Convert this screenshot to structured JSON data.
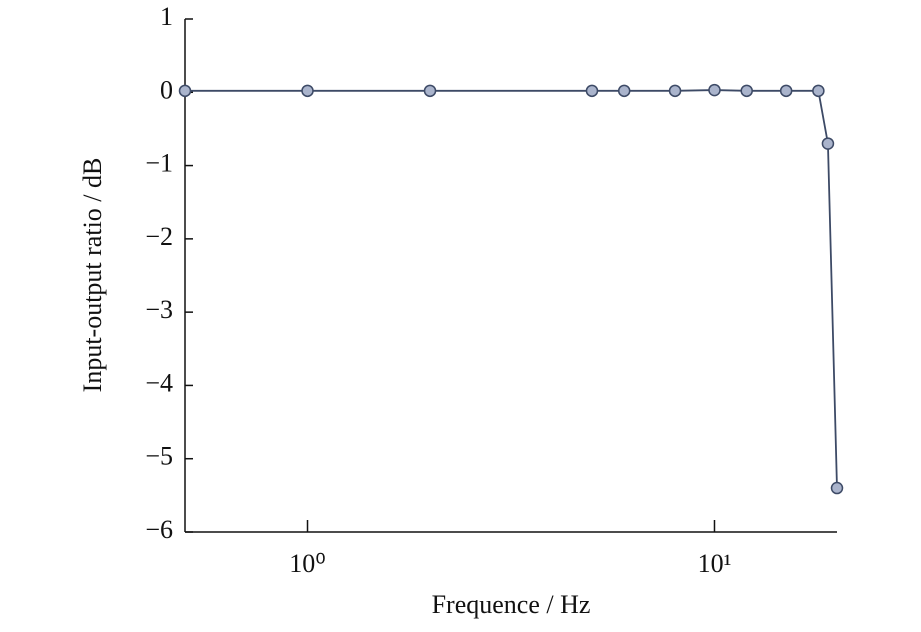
{
  "chart_data": {
    "type": "line",
    "x_label": "Frequence / Hz",
    "y_label": "Input-output ratio / dB",
    "x": [
      0.5,
      1,
      2,
      5,
      6,
      8,
      10,
      12,
      15,
      18,
      19,
      20
    ],
    "series": [
      {
        "color": "#3d4a66",
        "marker_fill": "#aab4cc",
        "values": [
          0.02,
          0.02,
          0.02,
          0.02,
          0.02,
          0.02,
          0.03,
          0.02,
          0.02,
          0.02,
          -0.7,
          -5.4
        ]
      }
    ],
    "x_log": true,
    "xlim": [
      0.5,
      20
    ],
    "xticks": [
      {
        "value": 1,
        "label": "10⁰"
      },
      {
        "value": 10,
        "label": "10¹"
      }
    ],
    "ylim": [
      -6,
      1
    ],
    "yticks": [
      {
        "value": -6,
        "label": "−6"
      },
      {
        "value": -5,
        "label": "−5"
      },
      {
        "value": -4,
        "label": "−4"
      },
      {
        "value": -3,
        "label": "−3"
      },
      {
        "value": -2,
        "label": "−2"
      },
      {
        "value": -1,
        "label": "−1"
      },
      0,
      1
    ]
  }
}
